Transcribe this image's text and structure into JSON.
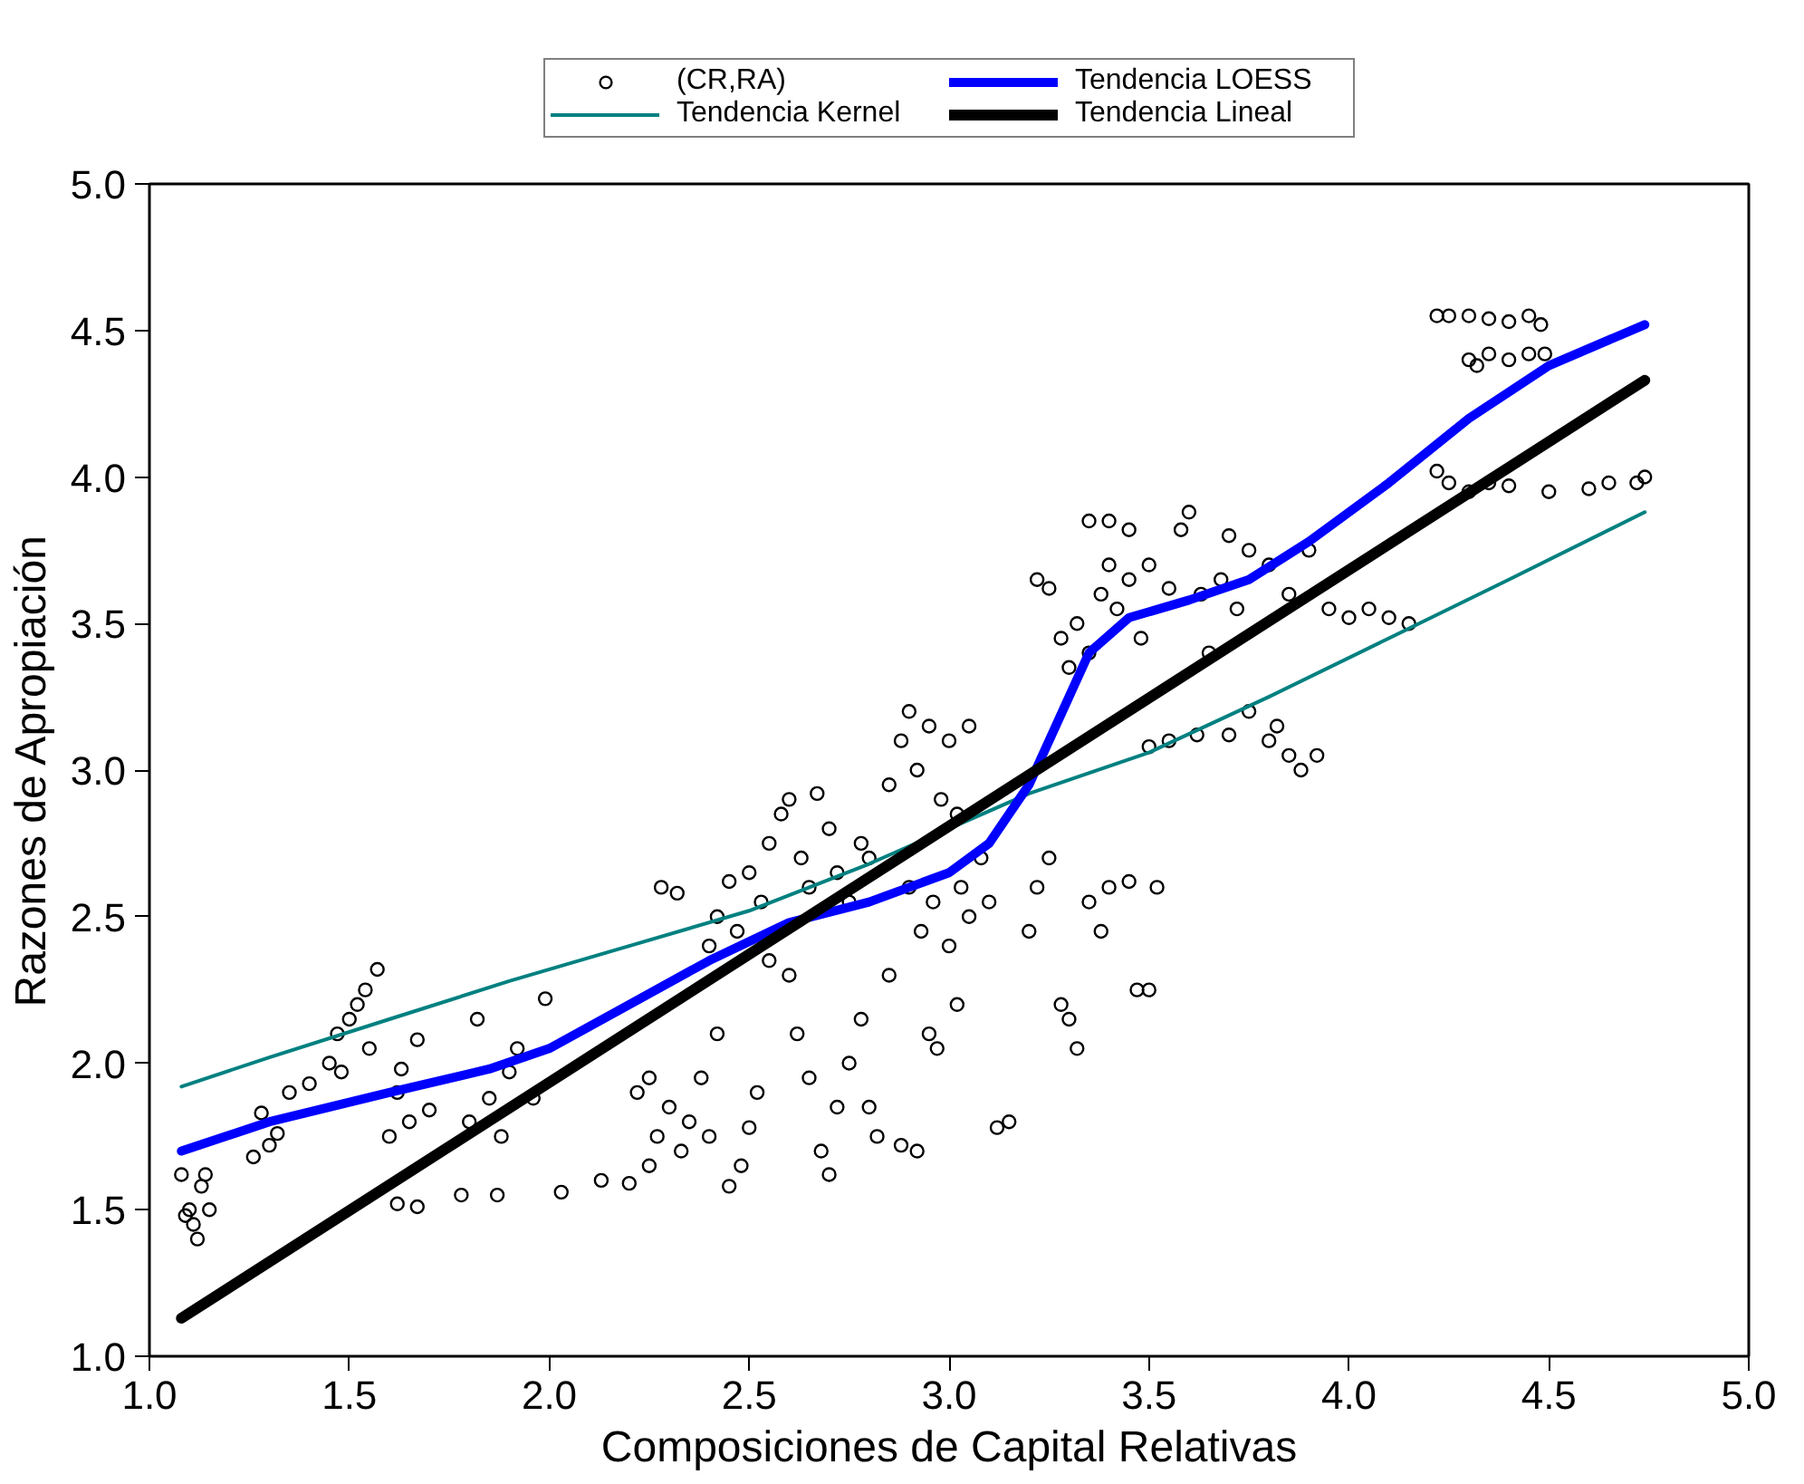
{
  "chart_data": {
    "type": "scatter",
    "xlabel": "Composiciones de Capital Relativas",
    "ylabel": "Razones de Apropiación",
    "xlim": [
      1.0,
      5.0
    ],
    "ylim": [
      1.0,
      5.0
    ],
    "xticks": [
      {
        "value": 1.0,
        "label": "1.0"
      },
      1.5,
      {
        "value": 2.0,
        "label": "2.0"
      },
      2.5,
      {
        "value": 3.0,
        "label": "3.0"
      },
      3.5,
      {
        "value": 4.0,
        "label": "4.0"
      },
      4.5,
      {
        "value": 5.0,
        "label": "5.0"
      }
    ],
    "yticks": [
      {
        "value": 1.0,
        "label": "1.0"
      },
      1.5,
      {
        "value": 2.0,
        "label": "2.0"
      },
      2.5,
      {
        "value": 3.0,
        "label": "3.0"
      },
      3.5,
      {
        "value": 4.0,
        "label": "4.0"
      },
      4.5,
      {
        "value": 5.0,
        "label": "5.0"
      }
    ],
    "grid": false,
    "legend": "top",
    "series": [
      {
        "name": "(CR,RA)",
        "marker": "circle",
        "color": "#000000",
        "x": [
          1.08,
          1.1,
          1.12,
          1.13,
          1.15,
          1.11,
          1.14,
          1.09,
          1.26,
          1.28,
          1.3,
          1.32,
          1.35,
          1.4,
          1.45,
          1.47,
          1.5,
          1.52,
          1.54,
          1.57,
          1.48,
          1.55,
          1.6,
          1.62,
          1.63,
          1.65,
          1.67,
          1.7,
          1.62,
          1.67,
          1.78,
          1.8,
          1.82,
          1.85,
          1.88,
          1.9,
          1.92,
          1.96,
          1.99,
          1.87,
          2.03,
          2.13,
          2.2,
          2.25,
          2.28,
          2.32,
          2.22,
          2.25,
          2.27,
          2.3,
          2.33,
          2.35,
          2.38,
          2.4,
          2.42,
          2.45,
          2.48,
          2.5,
          2.52,
          2.4,
          2.42,
          2.45,
          2.47,
          2.5,
          2.53,
          2.55,
          2.58,
          2.6,
          2.63,
          2.65,
          2.67,
          2.7,
          2.72,
          2.75,
          2.78,
          2.8,
          2.55,
          2.6,
          2.62,
          2.65,
          2.68,
          2.7,
          2.72,
          2.75,
          2.78,
          2.8,
          2.82,
          2.85,
          2.88,
          2.92,
          2.85,
          2.88,
          2.9,
          2.92,
          2.95,
          2.98,
          3.0,
          3.02,
          3.05,
          2.9,
          2.93,
          2.96,
          3.0,
          3.03,
          3.05,
          3.08,
          3.1,
          2.97,
          3.02,
          2.95,
          3.12,
          3.15,
          3.2,
          3.22,
          3.25,
          3.28,
          3.3,
          3.32,
          3.35,
          3.38,
          3.4,
          3.45,
          3.47,
          3.5,
          3.52,
          3.22,
          3.25,
          3.28,
          3.3,
          3.32,
          3.35,
          3.38,
          3.4,
          3.42,
          3.45,
          3.48,
          3.5,
          3.35,
          3.4,
          3.45,
          3.55,
          3.58,
          3.6,
          3.63,
          3.65,
          3.68,
          3.7,
          3.72,
          3.75,
          3.8,
          3.85,
          3.9,
          3.95,
          4.0,
          4.05,
          4.1,
          4.15,
          3.5,
          3.55,
          3.62,
          3.7,
          3.75,
          3.82,
          3.85,
          3.88,
          3.92,
          3.8,
          4.22,
          4.25,
          4.3,
          4.35,
          4.4,
          4.45,
          4.48,
          4.3,
          4.35,
          4.4,
          4.45,
          4.49,
          4.32,
          4.22,
          4.25,
          4.3,
          4.35,
          4.4,
          4.5,
          4.6,
          4.65,
          4.72,
          4.74
        ],
        "values": [
          1.62,
          1.5,
          1.4,
          1.58,
          1.5,
          1.45,
          1.62,
          1.48,
          1.68,
          1.83,
          1.72,
          1.76,
          1.9,
          1.93,
          2.0,
          2.1,
          2.15,
          2.2,
          2.25,
          2.32,
          1.97,
          2.05,
          1.75,
          1.9,
          1.98,
          1.8,
          2.08,
          1.84,
          1.52,
          1.51,
          1.55,
          1.8,
          2.15,
          1.88,
          1.75,
          1.97,
          2.05,
          1.88,
          2.22,
          1.55,
          1.56,
          1.6,
          1.59,
          1.65,
          2.6,
          2.58,
          1.9,
          1.95,
          1.75,
          1.85,
          1.7,
          1.8,
          1.95,
          1.75,
          2.1,
          1.58,
          1.65,
          1.78,
          1.9,
          2.4,
          2.5,
          2.62,
          2.45,
          2.65,
          2.55,
          2.75,
          2.85,
          2.9,
          2.7,
          2.6,
          2.92,
          2.8,
          2.65,
          2.55,
          2.75,
          2.7,
          2.35,
          2.3,
          2.1,
          1.95,
          1.7,
          1.62,
          1.85,
          2.0,
          2.15,
          1.85,
          1.75,
          2.3,
          1.72,
          1.7,
          2.95,
          3.1,
          3.2,
          3.0,
          3.15,
          2.9,
          3.1,
          2.85,
          3.15,
          2.6,
          2.45,
          2.55,
          2.4,
          2.6,
          2.5,
          2.7,
          2.55,
          2.05,
          2.2,
          2.1,
          1.78,
          1.8,
          2.45,
          2.6,
          2.7,
          2.2,
          2.15,
          2.05,
          2.55,
          2.45,
          2.6,
          2.62,
          2.25,
          2.25,
          2.6,
          3.65,
          3.62,
          3.45,
          3.35,
          3.5,
          3.4,
          3.6,
          3.7,
          3.55,
          3.65,
          3.45,
          3.7,
          3.85,
          3.85,
          3.82,
          3.62,
          3.82,
          3.88,
          3.6,
          3.4,
          3.65,
          3.8,
          3.55,
          3.75,
          3.7,
          3.6,
          3.75,
          3.55,
          3.52,
          3.55,
          3.52,
          3.5,
          3.08,
          3.1,
          3.12,
          3.12,
          3.2,
          3.15,
          3.05,
          3.0,
          3.05,
          3.1,
          4.55,
          4.55,
          4.55,
          4.54,
          4.53,
          4.55,
          4.52,
          4.4,
          4.42,
          4.4,
          4.42,
          4.42,
          4.38,
          4.02,
          3.98,
          3.95,
          3.98,
          3.97,
          3.95,
          3.96,
          3.98,
          3.98,
          4.0
        ]
      },
      {
        "name": "Tendencia Kernel",
        "type": "line",
        "color": "#008080",
        "x": [
          1.08,
          1.3,
          1.6,
          1.9,
          2.2,
          2.5,
          2.8,
          3.0,
          3.2,
          3.5,
          3.8,
          4.1,
          4.4,
          4.74
        ],
        "values": [
          1.92,
          2.02,
          2.15,
          2.28,
          2.4,
          2.52,
          2.68,
          2.8,
          2.92,
          3.06,
          3.25,
          3.45,
          3.65,
          3.88
        ]
      },
      {
        "name": "Tendencia LOESS",
        "type": "line",
        "color": "#0000ff",
        "x": [
          1.08,
          1.3,
          1.6,
          1.85,
          2.0,
          2.2,
          2.4,
          2.6,
          2.8,
          3.0,
          3.1,
          3.2,
          3.3,
          3.35,
          3.45,
          3.6,
          3.75,
          3.9,
          4.1,
          4.3,
          4.5,
          4.74
        ],
        "values": [
          1.7,
          1.8,
          1.9,
          1.98,
          2.05,
          2.2,
          2.35,
          2.48,
          2.55,
          2.65,
          2.75,
          2.95,
          3.25,
          3.4,
          3.52,
          3.58,
          3.65,
          3.78,
          3.98,
          4.2,
          4.38,
          4.52
        ]
      },
      {
        "name": "Tendencia Lineal",
        "type": "line",
        "color": "#000000",
        "x": [
          1.08,
          4.74
        ],
        "values": [
          1.13,
          4.33
        ]
      }
    ]
  }
}
